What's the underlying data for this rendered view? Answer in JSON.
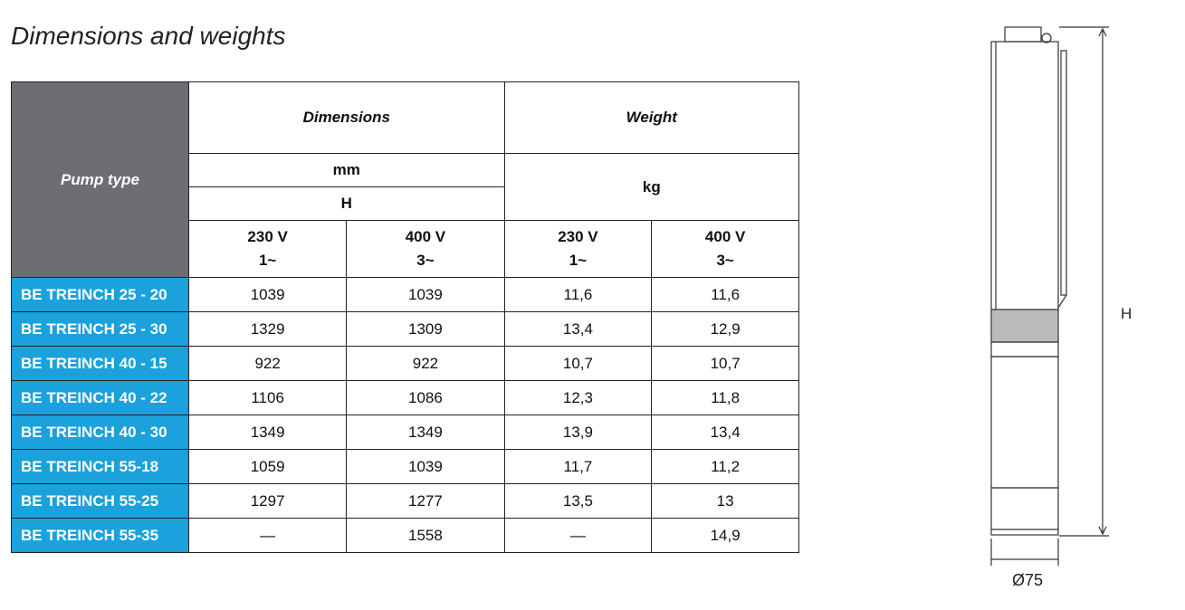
{
  "title": "Dimensions and weights",
  "table": {
    "header": {
      "pump_type": "Pump type",
      "dimensions": "Dimensions",
      "weight": "Weight",
      "dim_unit": "mm",
      "dim_symbol": "H",
      "weight_unit": "kg",
      "voltages": [
        {
          "voltage": "230 V",
          "phase": "1~"
        },
        {
          "voltage": "400 V",
          "phase": "3~"
        },
        {
          "voltage": "230 V",
          "phase": "1~"
        },
        {
          "voltage": "400 V",
          "phase": "3~"
        }
      ]
    },
    "rows": [
      [
        "BE TREINCH 25 - 20",
        "1039",
        "1039",
        "11,6",
        "11,6"
      ],
      [
        "BE TREINCH 25 - 30",
        "1329",
        "1309",
        "13,4",
        "12,9"
      ],
      [
        "BE TREINCH 40 - 15",
        "922",
        "922",
        "10,7",
        "10,7"
      ],
      [
        "BE TREINCH 40 - 22",
        "1106",
        "1086",
        "12,3",
        "11,8"
      ],
      [
        "BE TREINCH 40 - 30",
        "1349",
        "1349",
        "13,9",
        "13,4"
      ],
      [
        "BE TREINCH 55-18",
        "1059",
        "1039",
        "11,7",
        "11,2"
      ],
      [
        "BE TREINCH 55-25",
        "1297",
        "1277",
        "13,5",
        "13"
      ],
      [
        "BE TREINCH 55-35",
        "—",
        "1558",
        "—",
        "14,9"
      ]
    ]
  },
  "drawing": {
    "height_label": "H",
    "diameter_label": "Ø75"
  }
}
